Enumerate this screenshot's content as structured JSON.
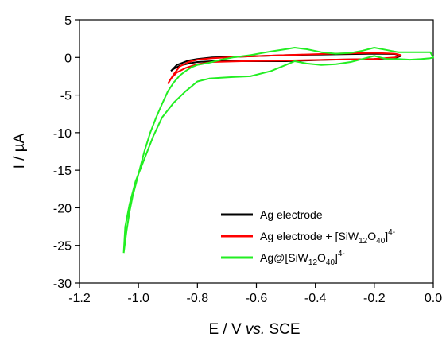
{
  "chart_data": {
    "type": "line",
    "xlabel_main": "E / V ",
    "xlabel_vs": "vs.",
    "xlabel_tail": " SCE",
    "ylabel": "I / µA",
    "xlim": [
      -1.2,
      0.0
    ],
    "ylim": [
      -30,
      5
    ],
    "xticks": [
      "-1.2",
      "-1.0",
      "-0.8",
      "-0.6",
      "-0.4",
      "-0.2",
      "0.0"
    ],
    "yticks": [
      "5",
      "0",
      "-5",
      "-10",
      "-15",
      "-20",
      "-25",
      "-30"
    ],
    "grid": false,
    "legend_position": "lower-right",
    "legend": [
      {
        "text": "Ag electrode"
      },
      {
        "text": "Ag electrode + [SiW",
        "sub": "12",
        "mid": "O",
        "sub2": "40",
        "end": "]",
        "sup": "4-"
      },
      {
        "text": "Ag@[SiW",
        "sub": "12",
        "mid": "O",
        "sub2": "40",
        "end": "]",
        "sup": "4-"
      }
    ],
    "series": [
      {
        "color": "#000000",
        "x": [
          -0.89,
          -0.87,
          -0.85,
          -0.83,
          -0.8,
          -0.75,
          -0.65,
          -0.5,
          -0.35,
          -0.2,
          -0.13,
          -0.11,
          -0.13,
          -0.2,
          -0.35,
          -0.5,
          -0.65,
          -0.75,
          -0.8,
          -0.83,
          -0.86,
          -0.88,
          -0.89
        ],
        "y": [
          -1.8,
          -1.0,
          -0.7,
          -0.4,
          -0.2,
          0.0,
          0.1,
          0.3,
          0.4,
          0.5,
          0.45,
          0.2,
          -0.1,
          -0.2,
          -0.3,
          -0.5,
          -0.5,
          -0.5,
          -0.6,
          -0.8,
          -1.1,
          -1.5,
          -1.8
        ]
      },
      {
        "color": "#ff0000",
        "x": [
          -0.9,
          -0.88,
          -0.86,
          -0.83,
          -0.8,
          -0.75,
          -0.65,
          -0.5,
          -0.35,
          -0.2,
          -0.13,
          -0.11,
          -0.13,
          -0.2,
          -0.35,
          -0.5,
          -0.65,
          -0.75,
          -0.8,
          -0.84,
          -0.87,
          -0.89,
          -0.9
        ],
        "y": [
          -3.5,
          -2.2,
          -1.2,
          -0.6,
          -0.3,
          -0.1,
          0.1,
          0.3,
          0.5,
          0.6,
          0.5,
          0.3,
          0.0,
          -0.2,
          -0.3,
          -0.4,
          -0.5,
          -0.6,
          -0.9,
          -1.4,
          -2.0,
          -2.8,
          -3.5
        ]
      },
      {
        "color": "#22ee22",
        "x": [
          -1.05,
          -1.04,
          -1.03,
          -1.02,
          -1.0,
          -0.98,
          -0.96,
          -0.94,
          -0.92,
          -0.9,
          -0.88,
          -0.86,
          -0.84,
          -0.82,
          -0.8,
          -0.76,
          -0.72,
          -0.68,
          -0.62,
          -0.55,
          -0.5,
          -0.47,
          -0.43,
          -0.38,
          -0.33,
          -0.28,
          -0.24,
          -0.2,
          -0.16,
          -0.12,
          -0.08,
          -0.04,
          -0.01,
          0.0,
          -0.01,
          -0.04,
          -0.08,
          -0.12,
          -0.16,
          -0.2,
          -0.24,
          -0.28,
          -0.33,
          -0.38,
          -0.43,
          -0.47,
          -0.5,
          -0.55,
          -0.62,
          -0.68,
          -0.72,
          -0.76,
          -0.8,
          -0.84,
          -0.88,
          -0.92,
          -0.95,
          -0.98,
          -1.01,
          -1.03,
          -1.045,
          -1.05
        ],
        "y": [
          -26.0,
          -23.0,
          -20.5,
          -18.5,
          -15.5,
          -12.5,
          -10.0,
          -8.0,
          -6.2,
          -4.5,
          -3.3,
          -2.4,
          -1.8,
          -1.3,
          -1.0,
          -0.7,
          -0.3,
          0.0,
          0.3,
          0.8,
          1.1,
          1.3,
          1.1,
          0.7,
          0.5,
          0.6,
          0.9,
          1.3,
          1.0,
          0.7,
          0.7,
          0.7,
          0.7,
          0.0,
          -0.1,
          -0.2,
          -0.3,
          -0.2,
          -0.2,
          0.2,
          -0.2,
          -0.6,
          -0.9,
          -1.0,
          -0.8,
          -0.5,
          -1.0,
          -1.8,
          -2.5,
          -2.6,
          -2.7,
          -2.8,
          -3.2,
          -4.5,
          -6.0,
          -8.0,
          -10.5,
          -13.5,
          -16.5,
          -19.5,
          -22.5,
          -26.0
        ]
      }
    ]
  }
}
